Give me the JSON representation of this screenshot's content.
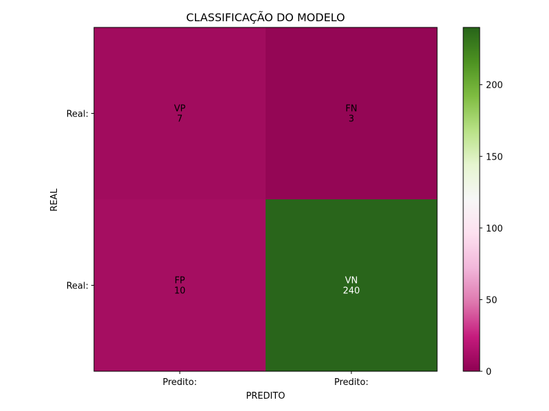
{
  "chart_data": {
    "type": "heatmap",
    "title": "CLASSIFICAÇÃO DO MODELO",
    "xlabel": "PREDITO",
    "ylabel": "REAL",
    "x_tick_labels": [
      "Predito:",
      "Predito:"
    ],
    "y_tick_labels": [
      "Real:",
      "Real:"
    ],
    "cells": [
      [
        {
          "label": "VP",
          "value": 7
        },
        {
          "label": "FN",
          "value": 3
        }
      ],
      [
        {
          "label": "FP",
          "value": 10
        },
        {
          "label": "VN",
          "value": 240
        }
      ]
    ],
    "colormap": "PiYG",
    "value_range": [
      0,
      240
    ],
    "colorbar_ticks": [
      0,
      50,
      100,
      150,
      200
    ],
    "cell_colors": [
      [
        "#a10c5e",
        "#940655"
      ],
      [
        "#a50e61",
        "#29651b"
      ]
    ],
    "cell_text_colors": [
      [
        "#000000",
        "#000000"
      ],
      [
        "#000000",
        "#ffffff"
      ]
    ],
    "grid": false
  }
}
